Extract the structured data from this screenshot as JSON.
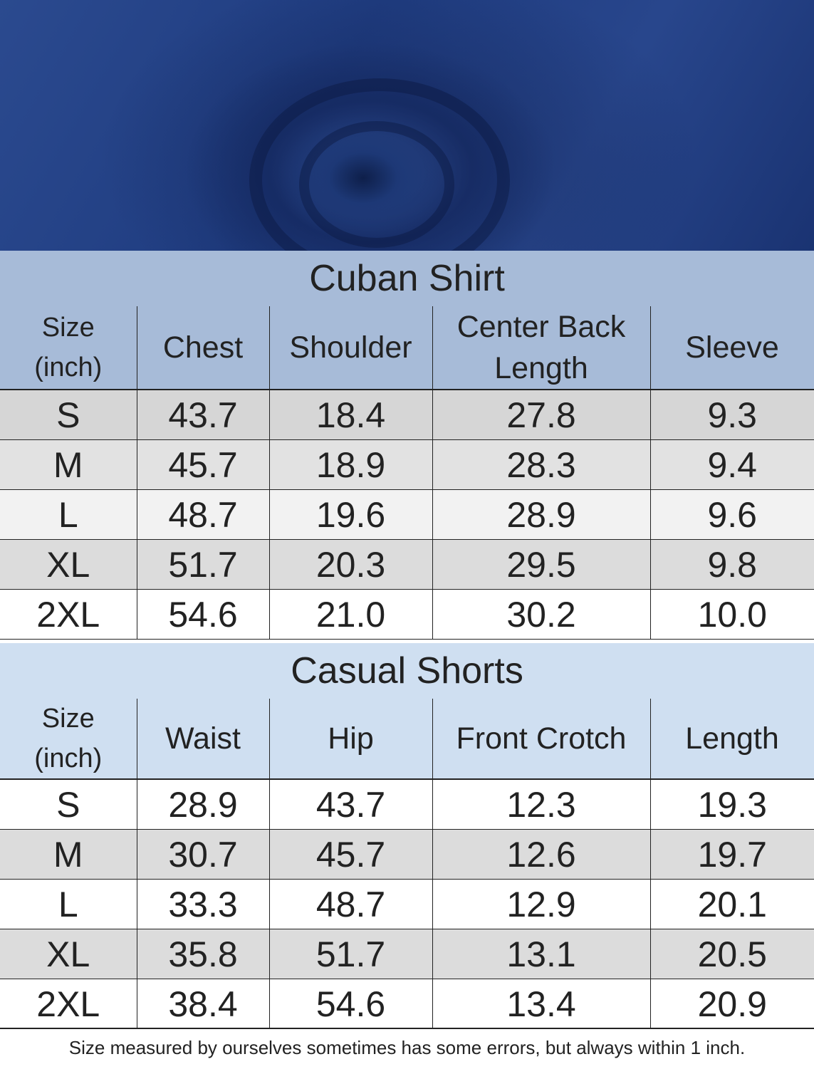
{
  "tables": [
    {
      "title": "Cuban Shirt",
      "headers": [
        "Size\n(inch)",
        "Chest",
        "Shoulder",
        "Center Back\nLength",
        "Sleeve"
      ],
      "rows": [
        [
          "S",
          "43.7",
          "18.4",
          "27.8",
          "9.3"
        ],
        [
          "M",
          "45.7",
          "18.9",
          "28.3",
          "9.4"
        ],
        [
          "L",
          "48.7",
          "19.6",
          "28.9",
          "9.6"
        ],
        [
          "XL",
          "51.7",
          "20.3",
          "29.5",
          "9.8"
        ],
        [
          "2XL",
          "54.6",
          "21.0",
          "30.2",
          "10.0"
        ]
      ]
    },
    {
      "title": "Casual Shorts",
      "headers": [
        "Size\n(inch)",
        "Waist",
        "Hip",
        "Front Crotch",
        "Length"
      ],
      "rows": [
        [
          "S",
          "28.9",
          "43.7",
          "12.3",
          "19.3"
        ],
        [
          "M",
          "30.7",
          "45.7",
          "12.6",
          "19.7"
        ],
        [
          "L",
          "33.3",
          "48.7",
          "12.9",
          "20.1"
        ],
        [
          "XL",
          "35.8",
          "51.7",
          "13.1",
          "20.5"
        ],
        [
          "2XL",
          "38.4",
          "54.6",
          "13.4",
          "20.9"
        ]
      ]
    }
  ],
  "footnote": "Size measured by ourselves sometimes has some errors, but always within 1 inch."
}
